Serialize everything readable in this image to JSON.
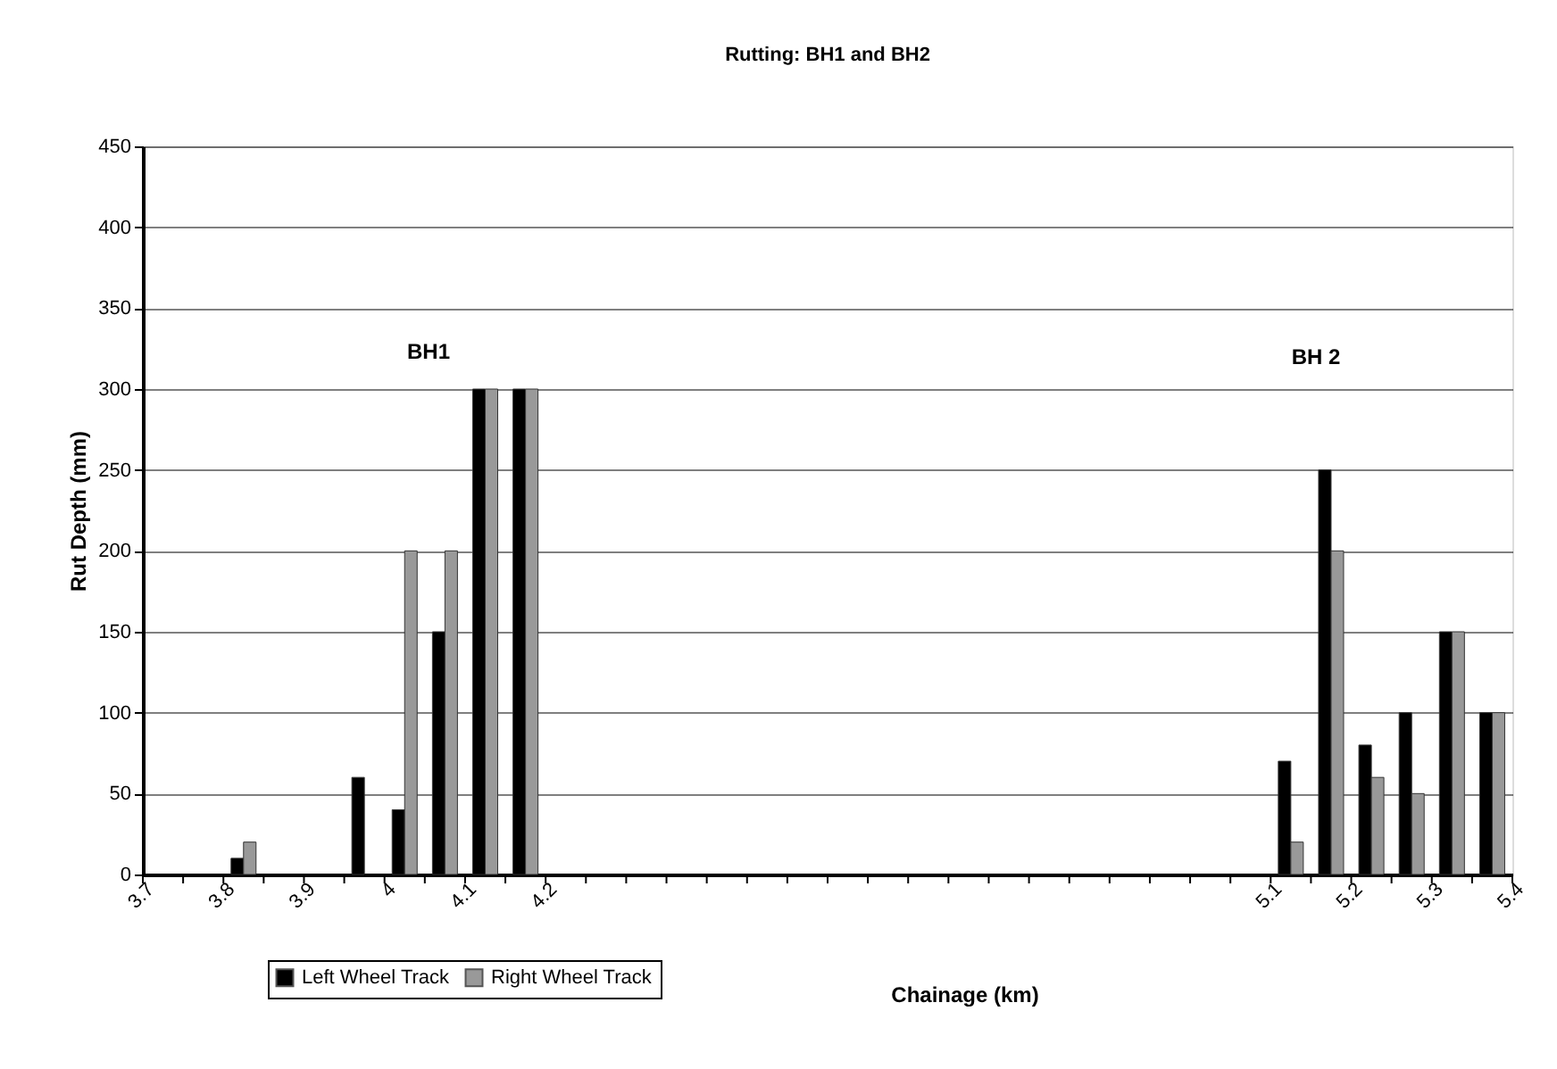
{
  "chart_data": {
    "type": "bar",
    "title": "Rutting: BH1 and BH2",
    "xlabel": "Chainage (km)",
    "ylabel": "Rut Depth (mm)",
    "x": [
      3.825,
      3.975,
      4.025,
      4.075,
      4.125,
      4.175,
      5.125,
      5.175,
      5.225,
      5.275,
      5.325,
      5.375
    ],
    "series": [
      {
        "name": "Left Wheel Track",
        "color": "#000000",
        "values": [
          10,
          60,
          40,
          150,
          300,
          300,
          70,
          250,
          80,
          100,
          150,
          100
        ]
      },
      {
        "name": "Right Wheel Track",
        "color": "#999999",
        "values": [
          20,
          null,
          200,
          200,
          300,
          300,
          20,
          200,
          60,
          50,
          150,
          100
        ]
      }
    ],
    "xlim": [
      3.7,
      5.4
    ],
    "xticks": [
      3.7,
      {
        "value": 3.75,
        "label": null
      },
      3.8,
      {
        "value": 3.85,
        "label": null
      },
      3.9,
      {
        "value": 3.95,
        "label": null
      },
      4,
      {
        "value": 4.05,
        "label": null
      },
      4.1,
      {
        "value": 4.15,
        "label": null
      },
      4.2,
      {
        "value": 4.25,
        "label": null
      },
      {
        "value": 4.3,
        "label": null
      },
      {
        "value": 4.35,
        "label": null
      },
      {
        "value": 4.4,
        "label": null
      },
      {
        "value": 4.45,
        "label": null
      },
      {
        "value": 4.5,
        "label": null
      },
      {
        "value": 4.55,
        "label": null
      },
      {
        "value": 4.6,
        "label": null
      },
      {
        "value": 4.65,
        "label": null
      },
      {
        "value": 4.7,
        "label": null
      },
      {
        "value": 4.75,
        "label": null
      },
      {
        "value": 4.8,
        "label": null
      },
      {
        "value": 4.85,
        "label": null
      },
      {
        "value": 4.9,
        "label": null
      },
      {
        "value": 4.95,
        "label": null
      },
      {
        "value": 5.0,
        "label": null
      },
      {
        "value": 5.05,
        "label": null
      },
      5.1,
      {
        "value": 5.15,
        "label": null
      },
      5.2,
      {
        "value": 5.25,
        "label": null
      },
      5.3,
      {
        "value": 5.35,
        "label": null
      },
      5.4
    ],
    "ylim": [
      0,
      450
    ],
    "yticks": [
      0,
      50,
      100,
      150,
      200,
      250,
      300,
      350,
      400,
      450
    ],
    "grid": "y",
    "legend": "bottom",
    "annotations": [
      "BH1",
      "BH 2"
    ]
  }
}
